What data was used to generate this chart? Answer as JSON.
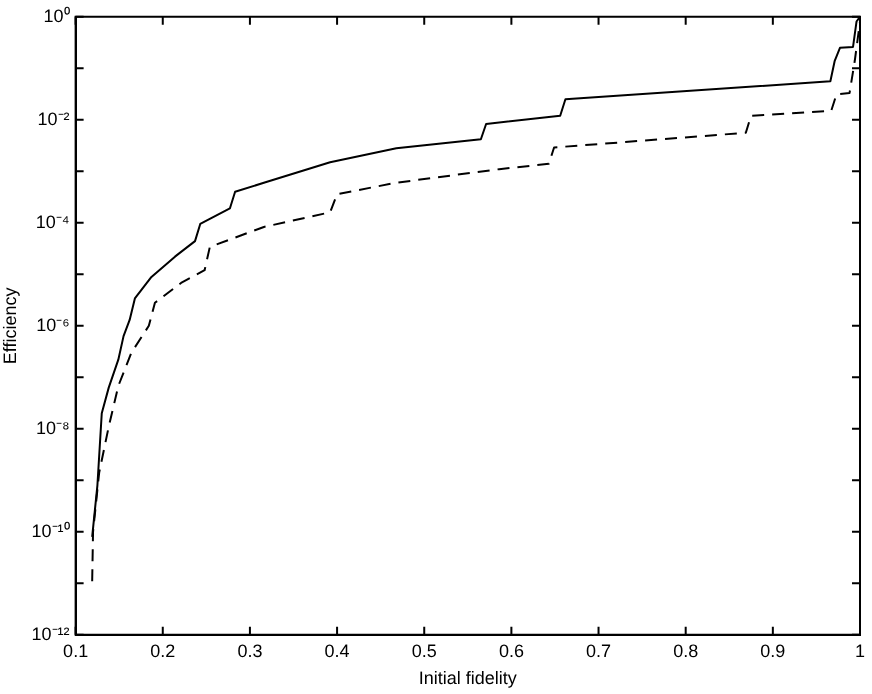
{
  "chart_data": {
    "type": "line",
    "xlabel": "Initial fidelity",
    "ylabel": "Efficiency",
    "log": "y",
    "grid": false,
    "legend": false,
    "marker": "none",
    "xlim": [
      0.1,
      1
    ],
    "xticks": [
      0.1,
      0.2,
      0.3,
      0.4,
      0.5,
      0.6,
      0.7,
      0.8,
      0.9,
      1
    ],
    "ylim": [
      1e-12,
      1
    ],
    "yticks": [
      {
        "value": 1e-12,
        "label": "10⁻¹²"
      },
      {
        "value": 1e-11,
        "label": null
      },
      {
        "value": 1e-10,
        "label": "10⁻¹⁰"
      },
      {
        "value": 1e-09,
        "label": null
      },
      {
        "value": 1e-08,
        "label": "10⁻⁸"
      },
      {
        "value": 1e-07,
        "label": null
      },
      {
        "value": 1e-06,
        "label": "10⁻⁶"
      },
      {
        "value": 1e-05,
        "label": null
      },
      {
        "value": 0.0001,
        "label": "10⁻⁴"
      },
      {
        "value": 0.001,
        "label": null
      },
      {
        "value": 0.01,
        "label": "10⁻²"
      },
      {
        "value": 0.1,
        "label": null
      },
      {
        "value": 1,
        "label": "10⁰"
      }
    ],
    "series": [
      {
        "color": "#000000",
        "line_style": "solid",
        "x": [
          0.119,
          0.125,
          0.13,
          0.138,
          0.149,
          0.155,
          0.162,
          0.168,
          0.187,
          0.214,
          0.237,
          0.243,
          0.277,
          0.283,
          0.316,
          0.392,
          0.468,
          0.565,
          0.571,
          0.656,
          0.662,
          0.966,
          0.971,
          0.977,
          0.992,
          0.996,
          1
        ],
        "values": [
          8e-11,
          8e-10,
          2e-08,
          6.3e-08,
          2.2e-07,
          6.3e-07,
          1.3e-06,
          3.4e-06,
          8.9e-06,
          2.2e-05,
          4.4e-05,
          9.5e-05,
          0.00019,
          0.0004,
          0.0006,
          0.0015,
          0.0028,
          0.0042,
          0.0083,
          0.012,
          0.025,
          0.056,
          0.14,
          0.25,
          0.26,
          0.81,
          1
        ]
      },
      {
        "color": "#000000",
        "line_style": "dashed",
        "x": [
          0.119,
          0.12,
          0.127,
          0.138,
          0.149,
          0.164,
          0.184,
          0.191,
          0.221,
          0.248,
          0.254,
          0.316,
          0.392,
          0.4,
          0.468,
          0.586,
          0.643,
          0.649,
          0.869,
          0.875,
          0.967,
          0.973,
          0.988,
          0.994,
          0.998,
          1
        ],
        "values": [
          1.1e-11,
          1e-10,
          1.4e-09,
          1.1e-08,
          6.8e-08,
          3e-07,
          1e-06,
          2.8e-06,
          6.8e-06,
          1.2e-05,
          3.4e-05,
          8.3e-05,
          0.00016,
          0.00036,
          0.0006,
          0.0011,
          0.0014,
          0.0029,
          0.0056,
          0.012,
          0.015,
          0.031,
          0.033,
          0.14,
          0.45,
          0.8
        ]
      }
    ]
  }
}
